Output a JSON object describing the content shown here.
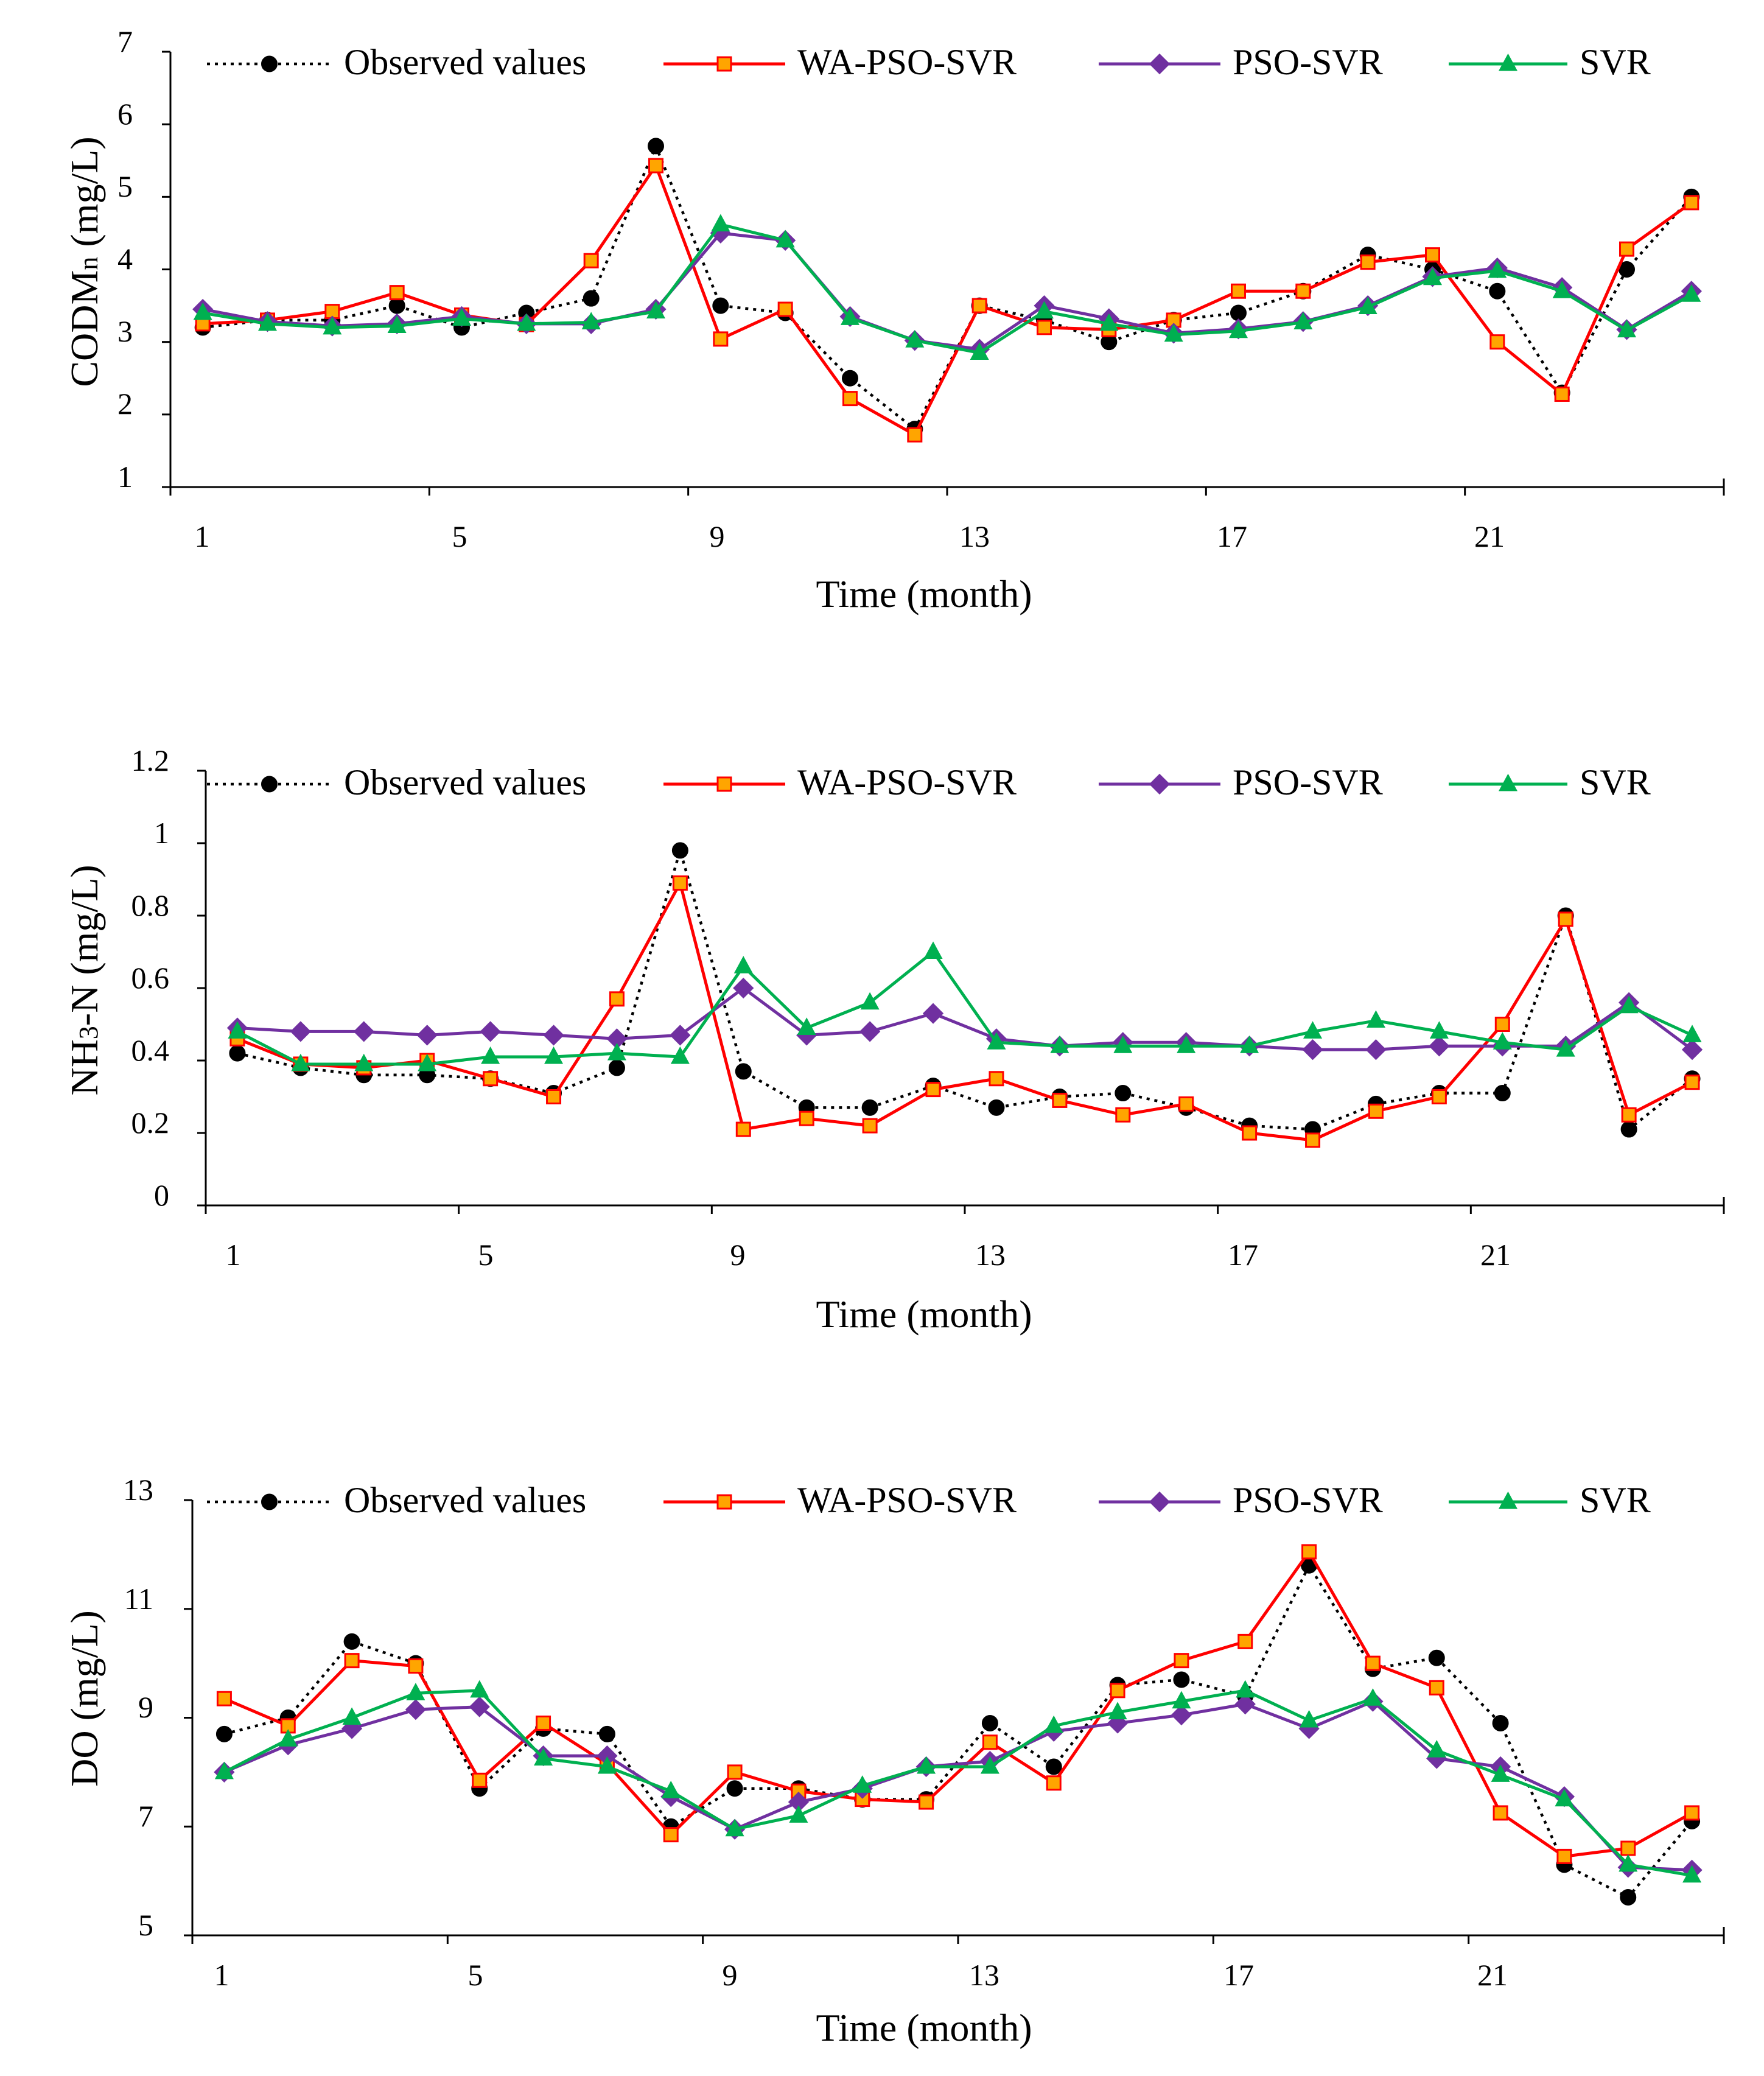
{
  "colors": {
    "observed": "#000000",
    "wa_pso_svr": "#ff0000",
    "wa_pso_svr_marker_fill": "#ffa500",
    "pso_svr": "#7030a0",
    "svr": "#00b050",
    "axis": "#000000"
  },
  "legend": [
    "Observed values",
    "WA-PSO-SVR",
    "PSO-SVR",
    "SVR"
  ],
  "chart_data": [
    {
      "type": "line",
      "title": "",
      "xlabel": "Time (month)",
      "ylabel_main": "CODM",
      "ylabel_sub": "n",
      "ylabel_rest": " (mg/L)",
      "ylim": [
        1,
        7
      ],
      "yticks": [
        1,
        2,
        3,
        4,
        5,
        6,
        7
      ],
      "ytick_labels": [
        "1",
        "2",
        "3",
        "4",
        "5",
        "6",
        "7"
      ],
      "xlim": [
        0.5,
        24.5
      ],
      "xtick_labels": [
        "1",
        "5",
        "9",
        "13",
        "17",
        "21"
      ],
      "xtick_values": [
        1,
        5,
        9,
        13,
        17,
        21
      ],
      "x": [
        1,
        2,
        3,
        4,
        5,
        6,
        7,
        8,
        9,
        10,
        11,
        12,
        13,
        14,
        15,
        16,
        17,
        18,
        19,
        20,
        21,
        22,
        23,
        24
      ],
      "series": [
        {
          "name": "Observed values",
          "values": [
            3.2,
            3.3,
            3.3,
            3.5,
            3.2,
            3.4,
            3.6,
            5.7,
            3.5,
            3.4,
            2.5,
            1.8,
            3.5,
            3.3,
            3.0,
            3.3,
            3.4,
            3.7,
            4.2,
            4.0,
            3.7,
            2.3,
            4.0,
            5.0
          ]
        },
        {
          "name": "WA-PSO-SVR",
          "values": [
            3.25,
            3.3,
            3.42,
            3.68,
            3.37,
            3.24,
            4.12,
            5.43,
            3.04,
            3.45,
            2.22,
            1.72,
            3.5,
            3.2,
            3.17,
            3.3,
            3.7,
            3.7,
            4.1,
            4.2,
            3.0,
            2.28,
            4.28,
            4.92
          ]
        },
        {
          "name": "PSO-SVR",
          "values": [
            3.45,
            3.28,
            3.22,
            3.25,
            3.35,
            3.25,
            3.25,
            3.45,
            4.5,
            4.4,
            3.35,
            3.02,
            2.9,
            3.5,
            3.32,
            3.12,
            3.18,
            3.28,
            3.5,
            3.9,
            4.02,
            3.75,
            3.17,
            3.7
          ]
        },
        {
          "name": "SVR",
          "values": [
            3.4,
            3.25,
            3.2,
            3.22,
            3.32,
            3.25,
            3.27,
            3.42,
            4.62,
            4.4,
            3.33,
            3.02,
            2.85,
            3.42,
            3.25,
            3.1,
            3.15,
            3.27,
            3.48,
            3.88,
            3.98,
            3.7,
            3.16,
            3.65
          ]
        }
      ]
    },
    {
      "type": "line",
      "title": "",
      "xlabel": "Time (month)",
      "ylabel_main": "NH",
      "ylabel_sub": "3",
      "ylabel_rest": "-N (mg/L)",
      "ylim": [
        0,
        1.2
      ],
      "yticks": [
        0,
        0.2,
        0.4,
        0.6,
        0.8,
        1,
        1.2
      ],
      "ytick_labels": [
        "0",
        "0.2",
        "0.4",
        "0.6",
        "0.8",
        "1",
        "1.2"
      ],
      "xlim": [
        0.5,
        24.5
      ],
      "xtick_labels": [
        "1",
        "5",
        "9",
        "13",
        "17",
        "21"
      ],
      "xtick_values": [
        1,
        5,
        9,
        13,
        17,
        21
      ],
      "x": [
        1,
        2,
        3,
        4,
        5,
        6,
        7,
        8,
        9,
        10,
        11,
        12,
        13,
        14,
        15,
        16,
        17,
        18,
        19,
        20,
        21,
        22,
        23,
        24
      ],
      "series": [
        {
          "name": "Observed values",
          "values": [
            0.42,
            0.38,
            0.36,
            0.36,
            0.35,
            0.31,
            0.38,
            0.98,
            0.37,
            0.27,
            0.27,
            0.33,
            0.27,
            0.3,
            0.31,
            0.27,
            0.22,
            0.21,
            0.28,
            0.31,
            0.31,
            0.8,
            0.21,
            0.35
          ]
        },
        {
          "name": "WA-PSO-SVR",
          "values": [
            0.46,
            0.39,
            0.38,
            0.4,
            0.35,
            0.3,
            0.57,
            0.89,
            0.21,
            0.24,
            0.22,
            0.32,
            0.35,
            0.29,
            0.25,
            0.28,
            0.2,
            0.18,
            0.26,
            0.3,
            0.5,
            0.79,
            0.25,
            0.34
          ]
        },
        {
          "name": "PSO-SVR",
          "values": [
            0.49,
            0.48,
            0.48,
            0.47,
            0.48,
            0.47,
            0.46,
            0.47,
            0.6,
            0.47,
            0.48,
            0.53,
            0.46,
            0.44,
            0.45,
            0.45,
            0.44,
            0.43,
            0.43,
            0.44,
            0.44,
            0.44,
            0.56,
            0.43
          ]
        },
        {
          "name": "SVR",
          "values": [
            0.48,
            0.39,
            0.39,
            0.39,
            0.41,
            0.41,
            0.42,
            0.41,
            0.66,
            0.49,
            0.56,
            0.7,
            0.45,
            0.44,
            0.44,
            0.44,
            0.44,
            0.48,
            0.51,
            0.48,
            0.45,
            0.43,
            0.55,
            0.47
          ]
        }
      ]
    },
    {
      "type": "line",
      "title": "",
      "xlabel": "Time (month)",
      "ylabel_main": "DO (mg/L)",
      "ylabel_sub": "",
      "ylabel_rest": "",
      "ylim": [
        5,
        13
      ],
      "yticks": [
        5,
        7,
        9,
        11,
        13
      ],
      "ytick_labels": [
        "5",
        "7",
        "9",
        "11",
        "13"
      ],
      "xlim": [
        0.5,
        24.5
      ],
      "xtick_labels": [
        "1",
        "5",
        "9",
        "13",
        "17",
        "21"
      ],
      "xtick_values": [
        1,
        5,
        9,
        13,
        17,
        21
      ],
      "x": [
        1,
        2,
        3,
        4,
        5,
        6,
        7,
        8,
        9,
        10,
        11,
        12,
        13,
        14,
        15,
        16,
        17,
        18,
        19,
        20,
        21,
        22,
        23,
        24
      ],
      "series": [
        {
          "name": "Observed values",
          "values": [
            8.7,
            9.0,
            10.4,
            10.0,
            7.7,
            8.8,
            8.7,
            7.0,
            7.7,
            7.7,
            7.5,
            7.5,
            8.9,
            8.1,
            9.6,
            9.7,
            9.4,
            11.8,
            9.9,
            10.1,
            8.9,
            6.3,
            5.7,
            7.1
          ]
        },
        {
          "name": "WA-PSO-SVR",
          "values": [
            9.35,
            8.85,
            10.05,
            9.95,
            7.85,
            8.9,
            8.15,
            6.85,
            8.0,
            7.65,
            7.5,
            7.45,
            8.55,
            7.8,
            9.5,
            10.05,
            10.4,
            12.05,
            10.0,
            9.55,
            7.25,
            6.45,
            6.6,
            7.25
          ]
        },
        {
          "name": "PSO-SVR",
          "values": [
            8.0,
            8.5,
            8.8,
            9.15,
            9.2,
            8.3,
            8.3,
            7.55,
            6.95,
            7.45,
            7.7,
            8.1,
            8.2,
            8.75,
            8.9,
            9.05,
            9.25,
            8.8,
            9.3,
            8.25,
            8.1,
            7.55,
            6.25,
            6.2
          ]
        },
        {
          "name": "SVR",
          "values": [
            8.0,
            8.6,
            9.0,
            9.45,
            9.5,
            8.25,
            8.1,
            7.65,
            6.95,
            7.2,
            7.75,
            8.1,
            8.1,
            8.85,
            9.1,
            9.3,
            9.5,
            8.95,
            9.35,
            8.4,
            7.95,
            7.5,
            6.3,
            6.1
          ]
        }
      ]
    }
  ]
}
